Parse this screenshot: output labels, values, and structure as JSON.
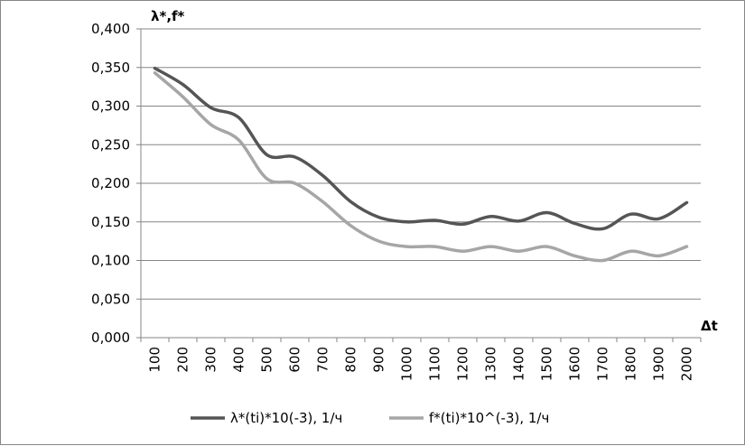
{
  "chart_data": {
    "type": "line",
    "ylabel": "λ*,f*",
    "xlabel": "Δt",
    "ylim": [
      0,
      0.4
    ],
    "y_ticks": [
      "0,000",
      "0,050",
      "0,100",
      "0,150",
      "0,200",
      "0,250",
      "0,300",
      "0,350",
      "0,400"
    ],
    "categories": [
      "100",
      "200",
      "300",
      "400",
      "500",
      "600",
      "700",
      "800",
      "900",
      "1000",
      "1100",
      "1200",
      "1300",
      "1400",
      "1500",
      "1600",
      "1700",
      "1800",
      "1900",
      "2000"
    ],
    "grid": true,
    "legend_position": "bottom",
    "series": [
      {
        "name": "λ*(ti)*10(-3), 1/ч",
        "color": "#555555",
        "values": [
          0.349,
          0.328,
          0.298,
          0.285,
          0.237,
          0.234,
          0.21,
          0.176,
          0.156,
          0.15,
          0.152,
          0.147,
          0.157,
          0.151,
          0.162,
          0.148,
          0.141,
          0.16,
          0.154,
          0.175
        ]
      },
      {
        "name": "f*(ti)*10^(-3), 1/ч",
        "color": "#a6a6a6",
        "values": [
          0.343,
          0.312,
          0.276,
          0.256,
          0.206,
          0.2,
          0.176,
          0.145,
          0.125,
          0.118,
          0.118,
          0.112,
          0.118,
          0.112,
          0.118,
          0.106,
          0.1,
          0.112,
          0.106,
          0.118
        ]
      }
    ]
  }
}
